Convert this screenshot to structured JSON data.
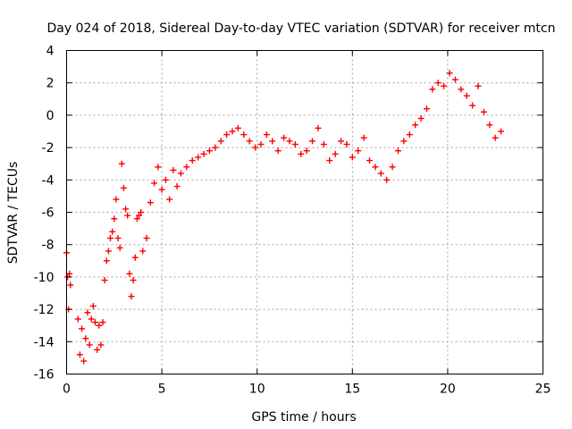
{
  "chart_data": {
    "type": "scatter",
    "title": "Day 024 of 2018, Sidereal Day-to-day VTEC variation (SDTVAR) for receiver mtcn",
    "xlabel": "GPS time / hours",
    "ylabel": "SDTVAR / TECUs",
    "xlim": [
      0,
      25
    ],
    "ylim": [
      -16,
      4
    ],
    "xticks": [
      0,
      5,
      10,
      15,
      20,
      25
    ],
    "yticks": [
      -16,
      -14,
      -12,
      -10,
      -8,
      -6,
      -4,
      -2,
      0,
      2,
      4
    ],
    "xtick_labels": [
      "0",
      "5",
      "10",
      "15",
      "20",
      "25"
    ],
    "ytick_labels": [
      "-16",
      "-14",
      "-12",
      "-10",
      "-8",
      "-6",
      "-4",
      "-2",
      "0",
      "2",
      "4"
    ],
    "grid": true,
    "marker": "+",
    "series": [
      {
        "name": "SDTVAR",
        "color": "#ff0000",
        "x": [
          0.0,
          0.05,
          0.1,
          0.15,
          0.2,
          0.6,
          0.7,
          0.8,
          0.9,
          1.0,
          1.1,
          1.2,
          1.3,
          1.4,
          1.5,
          1.6,
          1.7,
          1.8,
          1.9,
          2.0,
          2.1,
          2.2,
          2.3,
          2.4,
          2.5,
          2.6,
          2.7,
          2.8,
          2.9,
          3.0,
          3.1,
          3.2,
          3.3,
          3.4,
          3.5,
          3.6,
          3.7,
          3.8,
          3.9,
          4.0,
          4.2,
          4.4,
          4.6,
          4.8,
          5.0,
          5.2,
          5.4,
          5.6,
          5.8,
          6.0,
          6.3,
          6.6,
          6.9,
          7.2,
          7.5,
          7.8,
          8.1,
          8.4,
          8.7,
          9.0,
          9.3,
          9.6,
          9.9,
          10.2,
          10.5,
          10.8,
          11.1,
          11.4,
          11.7,
          12.0,
          12.3,
          12.6,
          12.9,
          13.2,
          13.5,
          13.8,
          14.1,
          14.4,
          14.7,
          15.0,
          15.3,
          15.6,
          15.9,
          16.2,
          16.5,
          16.8,
          17.1,
          17.4,
          17.7,
          18.0,
          18.3,
          18.6,
          18.9,
          19.2,
          19.5,
          19.8,
          20.1,
          20.4,
          20.7,
          21.0,
          21.3,
          21.6,
          21.9,
          22.2,
          22.5,
          22.8
        ],
        "y": [
          -8.5,
          -10.0,
          -12.0,
          -9.8,
          -10.5,
          -12.6,
          -14.8,
          -13.2,
          -15.2,
          -13.8,
          -12.2,
          -14.2,
          -12.6,
          -11.8,
          -12.8,
          -14.5,
          -13.0,
          -14.2,
          -12.8,
          -10.2,
          -9.0,
          -8.4,
          -7.6,
          -7.2,
          -6.4,
          -5.2,
          -7.6,
          -8.2,
          -3.0,
          -4.5,
          -5.8,
          -6.2,
          -9.8,
          -11.2,
          -10.2,
          -8.8,
          -6.4,
          -6.2,
          -6.0,
          -8.4,
          -7.6,
          -5.4,
          -4.2,
          -3.2,
          -4.6,
          -4.0,
          -5.2,
          -3.4,
          -4.4,
          -3.6,
          -3.2,
          -2.8,
          -2.6,
          -2.4,
          -2.2,
          -2.0,
          -1.6,
          -1.2,
          -1.0,
          -0.8,
          -1.2,
          -1.6,
          -2.0,
          -1.8,
          -1.2,
          -1.6,
          -2.2,
          -1.4,
          -1.6,
          -1.8,
          -2.4,
          -2.2,
          -1.6,
          -0.8,
          -1.8,
          -2.8,
          -2.4,
          -1.6,
          -1.8,
          -2.6,
          -2.2,
          -1.4,
          -2.8,
          -3.2,
          -3.6,
          -4.0,
          -3.2,
          -2.2,
          -1.6,
          -1.2,
          -0.6,
          -0.2,
          0.4,
          1.6,
          2.0,
          1.8,
          2.6,
          2.2,
          1.6,
          1.2,
          0.6,
          1.8,
          0.2,
          -0.6,
          -1.4,
          -1.0
        ]
      }
    ]
  }
}
